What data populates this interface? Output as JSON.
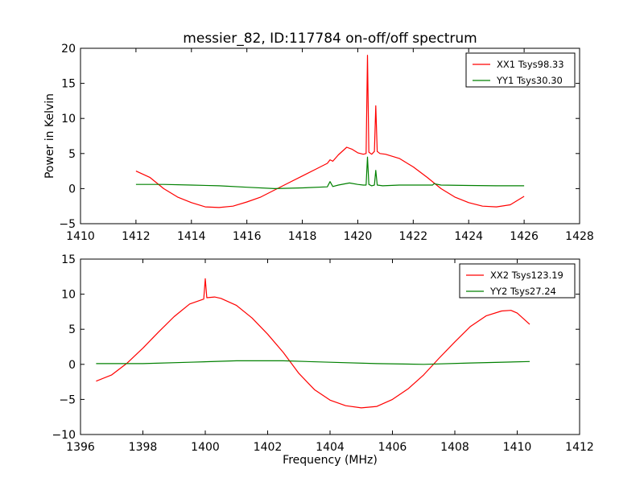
{
  "figure": {
    "title": "messier_82, ID:117784 on-off/off spectrum",
    "ylabel": "Power in Kelvin",
    "xlabel": "Frequency (MHz)"
  },
  "chart_data": [
    {
      "type": "line",
      "title": "messier_82, ID:117784 on-off/off spectrum",
      "xlabel": "",
      "ylabel": "Power in Kelvin",
      "xlim": [
        1410,
        1428
      ],
      "ylim": [
        -5,
        20
      ],
      "xticks": [
        1410,
        1412,
        1414,
        1416,
        1418,
        1420,
        1422,
        1424,
        1426,
        1428
      ],
      "yticks": [
        -5,
        0,
        5,
        10,
        15,
        20
      ],
      "grid": false,
      "legend_position": "top-right",
      "series": [
        {
          "name": "XX1 Tsys98.33",
          "color": "#ff0000",
          "x": [
            1412.0,
            1412.5,
            1413.0,
            1413.5,
            1414.0,
            1414.5,
            1415.0,
            1415.5,
            1416.0,
            1416.5,
            1417.0,
            1417.5,
            1418.0,
            1418.5,
            1418.9,
            1419.0,
            1419.1,
            1419.3,
            1419.6,
            1419.8,
            1420.0,
            1420.2,
            1420.3,
            1420.35,
            1420.4,
            1420.5,
            1420.6,
            1420.65,
            1420.7,
            1420.8,
            1421.0,
            1421.5,
            1422.0,
            1422.5,
            1423.0,
            1423.5,
            1424.0,
            1424.5,
            1425.0,
            1425.5,
            1426.0
          ],
          "y": [
            2.5,
            1.6,
            0.0,
            -1.2,
            -2.0,
            -2.6,
            -2.7,
            -2.5,
            -1.9,
            -1.2,
            -0.2,
            0.8,
            1.8,
            2.8,
            3.6,
            4.1,
            3.9,
            4.8,
            5.9,
            5.6,
            5.1,
            4.9,
            5.0,
            19.0,
            5.2,
            4.9,
            5.3,
            11.8,
            5.3,
            5.0,
            4.9,
            4.3,
            3.1,
            1.6,
            0.0,
            -1.2,
            -2.0,
            -2.5,
            -2.6,
            -2.3,
            -1.1
          ]
        },
        {
          "name": "YY1 Tsys30.30",
          "color": "#008000",
          "x": [
            1412.0,
            1413.0,
            1414.0,
            1415.0,
            1416.0,
            1417.0,
            1418.0,
            1418.9,
            1419.0,
            1419.1,
            1419.3,
            1419.7,
            1420.0,
            1420.2,
            1420.3,
            1420.35,
            1420.4,
            1420.5,
            1420.6,
            1420.65,
            1420.7,
            1420.9,
            1421.5,
            1422.0,
            1422.7,
            1422.75,
            1423.0,
            1424.0,
            1425.0,
            1426.0
          ],
          "y": [
            0.6,
            0.6,
            0.5,
            0.4,
            0.2,
            0.0,
            0.1,
            0.25,
            1.0,
            0.3,
            0.5,
            0.8,
            0.6,
            0.5,
            0.5,
            4.5,
            0.6,
            0.4,
            0.5,
            2.6,
            0.5,
            0.4,
            0.5,
            0.5,
            0.5,
            0.7,
            0.5,
            0.45,
            0.4,
            0.4
          ]
        }
      ]
    },
    {
      "type": "line",
      "title": "",
      "xlabel": "Frequency (MHz)",
      "ylabel": "",
      "xlim": [
        1396,
        1412
      ],
      "ylim": [
        -10,
        15
      ],
      "xticks": [
        1396,
        1398,
        1400,
        1402,
        1404,
        1406,
        1408,
        1410,
        1412
      ],
      "yticks": [
        -10,
        -5,
        0,
        5,
        10,
        15
      ],
      "grid": false,
      "legend_position": "top-right",
      "series": [
        {
          "name": "XX2 Tsys123.19",
          "color": "#ff0000",
          "x": [
            1396.5,
            1397.0,
            1397.5,
            1398.0,
            1398.5,
            1399.0,
            1399.5,
            1399.95,
            1400.0,
            1400.05,
            1400.3,
            1400.5,
            1401.0,
            1401.5,
            1402.0,
            1402.5,
            1403.0,
            1403.5,
            1404.0,
            1404.5,
            1405.0,
            1405.5,
            1406.0,
            1406.5,
            1407.0,
            1407.5,
            1408.0,
            1408.5,
            1409.0,
            1409.5,
            1409.8,
            1410.0,
            1410.4
          ],
          "y": [
            -2.4,
            -1.5,
            0.2,
            2.3,
            4.6,
            6.8,
            8.6,
            9.3,
            12.2,
            9.5,
            9.6,
            9.4,
            8.4,
            6.6,
            4.3,
            1.7,
            -1.3,
            -3.6,
            -5.1,
            -5.9,
            -6.2,
            -6.0,
            -5.0,
            -3.5,
            -1.5,
            0.9,
            3.2,
            5.4,
            6.9,
            7.6,
            7.7,
            7.3,
            5.7
          ]
        },
        {
          "name": "YY2 Tsys27.24",
          "color": "#008000",
          "x": [
            1396.5,
            1398.0,
            1399.5,
            1401.0,
            1402.5,
            1404.0,
            1405.5,
            1407.0,
            1408.5,
            1410.4
          ],
          "y": [
            0.1,
            0.1,
            0.3,
            0.5,
            0.5,
            0.3,
            0.1,
            0.0,
            0.2,
            0.4
          ]
        }
      ]
    }
  ]
}
